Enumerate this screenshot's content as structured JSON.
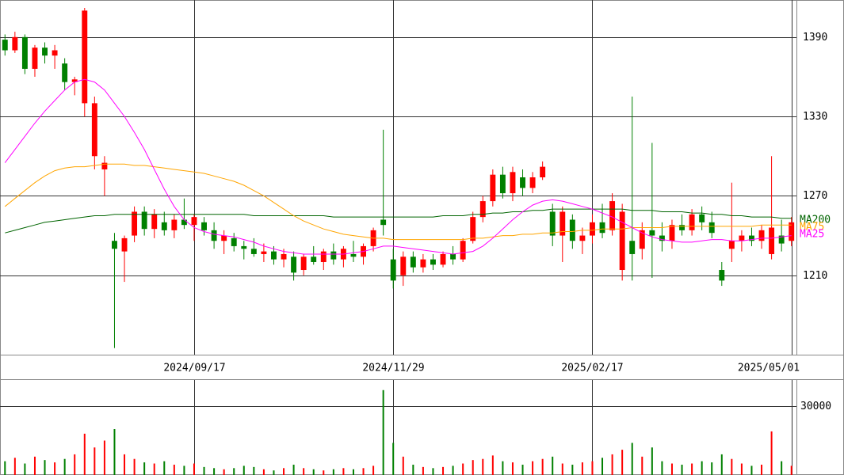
{
  "chart_data": {
    "type": "candlestick",
    "categories": [
      null,
      null,
      null,
      null,
      null,
      null,
      null,
      null,
      null,
      null,
      null,
      null,
      null,
      null,
      null,
      null,
      null,
      null,
      null,
      "2024/09/17",
      null,
      null,
      null,
      null,
      null,
      null,
      null,
      null,
      null,
      null,
      null,
      null,
      null,
      null,
      null,
      null,
      null,
      null,
      null,
      "2024/11/29",
      null,
      null,
      null,
      null,
      null,
      null,
      null,
      null,
      null,
      null,
      null,
      null,
      null,
      null,
      null,
      null,
      null,
      null,
      null,
      "2025/02/17",
      null,
      null,
      null,
      null,
      null,
      null,
      null,
      null,
      null,
      null,
      null,
      null,
      null,
      null,
      null,
      null,
      null,
      null,
      null,
      "2025/05/01"
    ],
    "open": [
      1388,
      1380,
      1390,
      1366,
      1382,
      1376,
      1370,
      1356,
      1340,
      1300,
      1290,
      1236,
      1228,
      1240,
      1258,
      1245,
      1250,
      1244,
      1252,
      1248,
      1250,
      1244,
      1236,
      1238,
      1232,
      1230,
      1226,
      1228,
      1222,
      1224,
      1214,
      1224,
      1220,
      1228,
      1222,
      1226,
      1224,
      1232,
      1252,
      1222,
      1210,
      1224,
      1216,
      1222,
      1218,
      1226,
      1222,
      1236,
      1254,
      1266,
      1286,
      1272,
      1284,
      1276,
      1284,
      1258,
      1240,
      1252,
      1236,
      1240,
      1250,
      1244,
      1214,
      1236,
      1230,
      1244,
      1240,
      1236,
      1248,
      1244,
      1256,
      1250,
      1214,
      1230,
      1236,
      1240,
      1236,
      1226,
      1240,
      1236
    ],
    "high": [
      1392,
      1394,
      1392,
      1384,
      1386,
      1384,
      1374,
      1360,
      1412,
      1345,
      1300,
      1242,
      1240,
      1262,
      1262,
      1260,
      1258,
      1256,
      1268,
      1256,
      1254,
      1250,
      1244,
      1242,
      1236,
      1238,
      1234,
      1232,
      1230,
      1228,
      1226,
      1232,
      1230,
      1234,
      1232,
      1236,
      1234,
      1246,
      1320,
      1230,
      1228,
      1228,
      1226,
      1226,
      1228,
      1232,
      1238,
      1258,
      1270,
      1290,
      1292,
      1292,
      1290,
      1288,
      1296,
      1264,
      1262,
      1256,
      1246,
      1256,
      1264,
      1272,
      1264,
      1345,
      1250,
      1310,
      1250,
      1252,
      1256,
      1260,
      1262,
      1258,
      1220,
      1280,
      1244,
      1246,
      1248,
      1300,
      1252,
      1254
    ],
    "low": [
      1376,
      1378,
      1362,
      1360,
      1370,
      1366,
      1350,
      1346,
      1330,
      1290,
      1270,
      1155,
      1205,
      1235,
      1240,
      1238,
      1240,
      1238,
      1245,
      1236,
      1240,
      1230,
      1226,
      1228,
      1222,
      1224,
      1220,
      1218,
      1216,
      1206,
      1210,
      1218,
      1214,
      1218,
      1216,
      1220,
      1218,
      1228,
      1240,
      1200,
      1202,
      1212,
      1212,
      1214,
      1216,
      1218,
      1220,
      1234,
      1250,
      1262,
      1268,
      1266,
      1270,
      1272,
      1282,
      1232,
      1220,
      1230,
      1226,
      1234,
      1238,
      1240,
      1206,
      1206,
      1222,
      1208,
      1228,
      1230,
      1240,
      1240,
      1244,
      1238,
      1202,
      1220,
      1228,
      1232,
      1230,
      1222,
      1228,
      1232
    ],
    "close": [
      1380,
      1390,
      1366,
      1382,
      1376,
      1380,
      1356,
      1358,
      1410,
      1340,
      1295,
      1230,
      1238,
      1258,
      1245,
      1256,
      1244,
      1252,
      1248,
      1254,
      1244,
      1236,
      1240,
      1232,
      1230,
      1226,
      1228,
      1222,
      1226,
      1212,
      1224,
      1220,
      1228,
      1222,
      1230,
      1224,
      1232,
      1244,
      1248,
      1206,
      1224,
      1216,
      1222,
      1218,
      1226,
      1222,
      1236,
      1254,
      1266,
      1286,
      1272,
      1288,
      1276,
      1284,
      1292,
      1240,
      1258,
      1236,
      1240,
      1250,
      1242,
      1266,
      1258,
      1226,
      1244,
      1240,
      1236,
      1248,
      1244,
      1256,
      1250,
      1242,
      1206,
      1236,
      1240,
      1236,
      1244,
      1246,
      1234,
      1250
    ],
    "volume": [
      6000,
      7500,
      5000,
      8000,
      6500,
      5500,
      7000,
      9000,
      18000,
      12000,
      15000,
      20000,
      9000,
      7000,
      5500,
      5000,
      6000,
      4500,
      4000,
      5000,
      3500,
      3000,
      2500,
      3000,
      4000,
      3500,
      2500,
      2000,
      3000,
      4500,
      3000,
      2500,
      2000,
      2500,
      3000,
      2500,
      3000,
      4000,
      37000,
      14000,
      8000,
      4500,
      3500,
      3000,
      3500,
      4000,
      5000,
      6500,
      7000,
      8500,
      6000,
      5500,
      4500,
      6000,
      7000,
      8000,
      5000,
      4500,
      5500,
      6000,
      7500,
      9000,
      11000,
      14000,
      8000,
      12000,
      6000,
      5000,
      4500,
      5000,
      6000,
      5500,
      9000,
      7000,
      5000,
      4000,
      4500,
      19000,
      6000,
      4000
    ],
    "up_color": "#ff0000",
    "down_color": "#008000",
    "moving_averages": [
      {
        "name": "MA200",
        "color": "#006400",
        "values": [
          1242,
          1244,
          1246,
          1248,
          1250,
          1251,
          1252,
          1253,
          1254,
          1255,
          1255,
          1256,
          1256,
          1256,
          1256,
          1256,
          1256,
          1256,
          1256,
          1256,
          1256,
          1256,
          1256,
          1256,
          1256,
          1255,
          1255,
          1255,
          1255,
          1255,
          1255,
          1255,
          1255,
          1254,
          1254,
          1254,
          1254,
          1254,
          1254,
          1254,
          1254,
          1254,
          1254,
          1254,
          1255,
          1255,
          1255,
          1256,
          1256,
          1257,
          1257,
          1258,
          1258,
          1259,
          1259,
          1260,
          1260,
          1260,
          1260,
          1260,
          1260,
          1260,
          1260,
          1259,
          1259,
          1259,
          1258,
          1258,
          1258,
          1257,
          1257,
          1256,
          1256,
          1255,
          1255,
          1254,
          1254,
          1254,
          1253,
          1253
        ]
      },
      {
        "name": "MA75",
        "color": "#ffa500",
        "values": [
          1262,
          1268,
          1274,
          1280,
          1285,
          1289,
          1291,
          1292,
          1292,
          1293,
          1294,
          1294,
          1294,
          1293,
          1293,
          1292,
          1291,
          1290,
          1289,
          1288,
          1287,
          1285,
          1283,
          1281,
          1278,
          1274,
          1270,
          1265,
          1260,
          1255,
          1251,
          1248,
          1245,
          1243,
          1241,
          1240,
          1239,
          1238,
          1238,
          1237,
          1237,
          1237,
          1237,
          1237,
          1237,
          1237,
          1237,
          1238,
          1238,
          1239,
          1240,
          1240,
          1241,
          1241,
          1242,
          1242,
          1243,
          1243,
          1244,
          1244,
          1245,
          1245,
          1245,
          1246,
          1246,
          1246,
          1246,
          1247,
          1247,
          1247,
          1247,
          1247,
          1247,
          1247,
          1247,
          1247,
          1248,
          1248,
          1248,
          1248
        ]
      },
      {
        "name": "MA25",
        "color": "#ff00ff",
        "values": [
          1295,
          1305,
          1315,
          1325,
          1334,
          1342,
          1350,
          1356,
          1358,
          1356,
          1350,
          1340,
          1330,
          1318,
          1305,
          1290,
          1275,
          1262,
          1252,
          1246,
          1243,
          1241,
          1240,
          1239,
          1237,
          1235,
          1232,
          1230,
          1228,
          1227,
          1226,
          1226,
          1226,
          1226,
          1226,
          1227,
          1228,
          1230,
          1232,
          1232,
          1231,
          1230,
          1229,
          1228,
          1227,
          1226,
          1227,
          1228,
          1232,
          1238,
          1245,
          1252,
          1258,
          1263,
          1266,
          1267,
          1266,
          1264,
          1262,
          1260,
          1257,
          1254,
          1250,
          1246,
          1242,
          1239,
          1237,
          1236,
          1235,
          1235,
          1236,
          1237,
          1237,
          1236,
          1236,
          1237,
          1238,
          1238,
          1239,
          1240
        ]
      }
    ],
    "ylim": [
      1150,
      1418
    ],
    "yticks": [
      1210,
      1270,
      1330,
      1390
    ],
    "volume_ylim": [
      0,
      41400
    ],
    "volume_yticks": [
      30000
    ]
  }
}
